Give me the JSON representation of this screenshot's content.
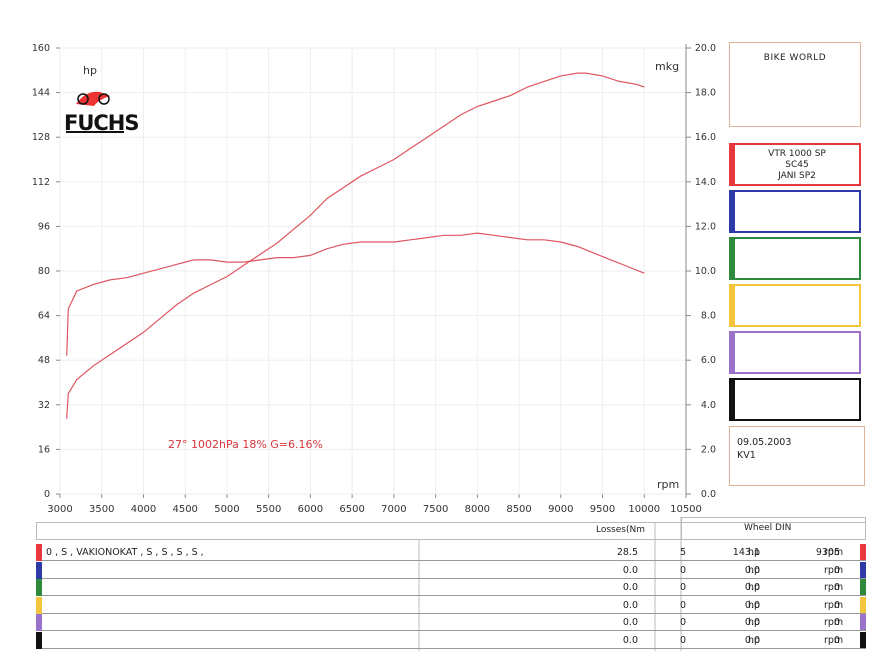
{
  "chart_data": {
    "type": "line",
    "x_ticks": [
      3000,
      3500,
      4000,
      4500,
      5000,
      5500,
      6000,
      6500,
      7000,
      7500,
      8000,
      8500,
      9000,
      9500,
      10000,
      10500
    ],
    "xlim": [
      3000,
      10500
    ],
    "y_left_ticks": [
      0,
      16,
      32,
      48,
      64,
      80,
      96,
      112,
      128,
      144,
      160
    ],
    "ylim_left": [
      0,
      160
    ],
    "y_right_ticks": [
      "0.0",
      "2.0",
      "4.0",
      "6.0",
      "8.0",
      "10.0",
      "12.0",
      "14.0",
      "16.0",
      "18.0",
      "20.0"
    ],
    "ylim_right": [
      0,
      20
    ],
    "xlabel": "rpm",
    "ylabel_left": "hp",
    "ylabel_right": "mkg",
    "annotation": "27°  1002hPa  18%    G=6.16%",
    "grid": true,
    "series": [
      {
        "axis": "left",
        "color": "#e05560",
        "x": [
          3080,
          3100,
          3200,
          3400,
          3600,
          3800,
          4000,
          4200,
          4400,
          4600,
          4800,
          5000,
          5200,
          5400,
          5600,
          5800,
          6000,
          6200,
          6400,
          6600,
          6800,
          7000,
          7200,
          7400,
          7600,
          7800,
          8000,
          8200,
          8400,
          8600,
          8800,
          9000,
          9200,
          9300,
          9500,
          9700,
          9900,
          10000
        ],
        "values": [
          27,
          36,
          41,
          46,
          50,
          54,
          58,
          63,
          68,
          72,
          75,
          78,
          82,
          86,
          90,
          95,
          100,
          106,
          110,
          114,
          117,
          120,
          124,
          128,
          132,
          136,
          139,
          141,
          143,
          146,
          148,
          150,
          151,
          151,
          150,
          148,
          147,
          146
        ]
      },
      {
        "axis": "right",
        "color": "#e05560",
        "x": [
          3080,
          3100,
          3200,
          3400,
          3600,
          3800,
          4000,
          4200,
          4400,
          4600,
          4800,
          5000,
          5200,
          5400,
          5600,
          5800,
          6000,
          6200,
          6400,
          6600,
          6800,
          7000,
          7200,
          7400,
          7600,
          7800,
          8000,
          8200,
          8400,
          8600,
          8800,
          9000,
          9200,
          9400,
          9600,
          9800,
          10000
        ],
        "values": [
          6.2,
          8.3,
          9.1,
          9.4,
          9.6,
          9.7,
          9.9,
          10.1,
          10.3,
          10.5,
          10.5,
          10.4,
          10.4,
          10.5,
          10.6,
          10.6,
          10.7,
          11.0,
          11.2,
          11.3,
          11.3,
          11.3,
          11.4,
          11.5,
          11.6,
          11.6,
          11.7,
          11.6,
          11.5,
          11.4,
          11.4,
          11.3,
          11.1,
          10.8,
          10.5,
          10.2,
          9.9
        ]
      }
    ]
  },
  "brand": {
    "hp_label": "hp",
    "logo_text": "FUCHS"
  },
  "side": {
    "header": "BIKE WORLD",
    "slots": [
      {
        "color": "#e8383f",
        "lines": [
          "VTR 1000 SP",
          "SC45",
          "JANI SP2"
        ]
      },
      {
        "color": "#2d3aa8",
        "lines": [
          "",
          "",
          ""
        ]
      },
      {
        "color": "#2f8a3c",
        "lines": [
          "",
          "",
          ""
        ]
      },
      {
        "color": "#f2c53a",
        "lines": [
          "",
          "",
          ""
        ]
      },
      {
        "color": "#9b72c9",
        "lines": [
          "",
          "",
          ""
        ]
      },
      {
        "color": "#111111",
        "lines": [
          "",
          "",
          ""
        ]
      }
    ],
    "date": "09.05.2003",
    "code": "KV1"
  },
  "table": {
    "losses_header": "Losses(Nm",
    "wheel_header": "Wheel DIN",
    "rows": [
      {
        "color": "#e8383f",
        "desc": "0 , S , VAKIONOKAT , S , S , S , S ,",
        "loss": "28.5",
        "loss2": "5",
        "hp": "143.1",
        "hp_unit": "hp",
        "rpm": "9305",
        "rpm_unit": "rpm"
      },
      {
        "color": "#2d3aa8",
        "desc": "",
        "loss": "0.0",
        "loss2": "0",
        "hp": "0.0",
        "hp_unit": "hp",
        "rpm": "0",
        "rpm_unit": "rpm"
      },
      {
        "color": "#2f8a3c",
        "desc": "",
        "loss": "0.0",
        "loss2": "0",
        "hp": "0.0",
        "hp_unit": "hp",
        "rpm": "0",
        "rpm_unit": "rpm"
      },
      {
        "color": "#f2c53a",
        "desc": "",
        "loss": "0.0",
        "loss2": "0",
        "hp": "0.0",
        "hp_unit": "hp",
        "rpm": "0",
        "rpm_unit": "rpm"
      },
      {
        "color": "#9b72c9",
        "desc": "",
        "loss": "0.0",
        "loss2": "0",
        "hp": "0.0",
        "hp_unit": "hp",
        "rpm": "0",
        "rpm_unit": "rpm"
      },
      {
        "color": "#111111",
        "desc": "",
        "loss": "0.0",
        "loss2": "0",
        "hp": "0.0",
        "hp_unit": "hp",
        "rpm": "0",
        "rpm_unit": "rpm"
      }
    ]
  }
}
